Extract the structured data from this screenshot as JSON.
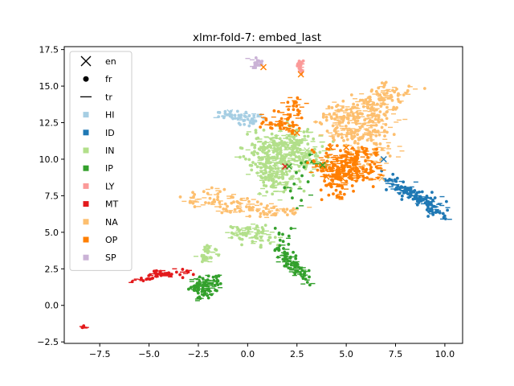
{
  "chart_data": {
    "type": "scatter",
    "title": "xlmr-fold-7: embed_last",
    "xlabel": "",
    "ylabel": "",
    "xlim": [
      -9.3,
      10.9
    ],
    "ylim": [
      -2.6,
      17.7
    ],
    "xticks": [
      -7.5,
      -5.0,
      -2.5,
      0.0,
      2.5,
      5.0,
      7.5,
      10.0
    ],
    "xtick_labels": [
      "−7.5",
      "−5.0",
      "−2.5",
      "0.0",
      "2.5",
      "5.0",
      "7.5",
      "10.0"
    ],
    "yticks": [
      -2.5,
      0.0,
      2.5,
      5.0,
      7.5,
      10.0,
      12.5,
      15.0,
      17.5
    ],
    "ytick_labels": [
      "−2.5",
      "0.0",
      "2.5",
      "5.0",
      "7.5",
      "10.0",
      "12.5",
      "15.0",
      "17.5"
    ],
    "grid": false,
    "legend_position": "upper-left",
    "marker_legend": [
      {
        "label": "en",
        "marker": "x"
      },
      {
        "label": "fr",
        "marker": "dot"
      },
      {
        "label": "tr",
        "marker": "line"
      }
    ],
    "series": [
      {
        "name": "HI",
        "color": "#a6cee3",
        "clusters": [
          {
            "points": [
              [
                -1.5,
                13.2
              ],
              [
                -0.3,
                12.7
              ],
              [
                0.2,
                12.5
              ],
              [
                -0.8,
                13.0
              ],
              [
                0.5,
                12.8
              ]
            ],
            "spread": [
              0.3,
              0.15
            ],
            "n": 60
          }
        ]
      },
      {
        "name": "ID",
        "color": "#1f78b4",
        "clusters": [
          {
            "points": [
              [
                7.0,
                8.8
              ],
              [
                7.8,
                8.0
              ],
              [
                8.6,
                7.5
              ],
              [
                9.3,
                7.2
              ],
              [
                9.5,
                6.5
              ],
              [
                10.0,
                6.2
              ]
            ],
            "spread": [
              0.25,
              0.2
            ],
            "n": 170
          }
        ]
      },
      {
        "name": "IN",
        "color": "#b2df8a",
        "clusters": [
          {
            "points": [
              [
                0.3,
                11.5
              ],
              [
                1.5,
                11.2
              ],
              [
                2.5,
                11.5
              ],
              [
                3.2,
                11.0
              ],
              [
                0.5,
                10.2
              ],
              [
                1.5,
                9.8
              ],
              [
                2.5,
                10.3
              ],
              [
                0.8,
                9.0
              ],
              [
                2.2,
                8.6
              ],
              [
                3.5,
                10.0
              ],
              [
                1.2,
                8.2
              ]
            ],
            "spread": [
              0.45,
              0.45
            ],
            "n": 520
          },
          {
            "points": [
              [
                -0.5,
                5.0
              ],
              [
                0.2,
                5.3
              ],
              [
                0.8,
                5.0
              ],
              [
                -0.2,
                4.6
              ],
              [
                1.0,
                4.5
              ]
            ],
            "spread": [
              0.3,
              0.25
            ],
            "n": 90
          },
          {
            "points": [
              [
                -2.0,
                3.9
              ],
              [
                -2.3,
                3.2
              ],
              [
                -1.8,
                3.5
              ]
            ],
            "spread": [
              0.2,
              0.25
            ],
            "n": 40
          }
        ]
      },
      {
        "name": "IP",
        "color": "#33a02c",
        "clusters": [
          {
            "points": [
              [
                1.8,
                3.4
              ],
              [
                2.2,
                2.9
              ],
              [
                2.6,
                2.4
              ],
              [
                3.0,
                1.8
              ],
              [
                1.6,
                4.0
              ]
            ],
            "spread": [
              0.2,
              0.2
            ],
            "n": 110
          },
          {
            "points": [
              [
                -2.3,
                1.6
              ],
              [
                -2.0,
                1.1
              ],
              [
                -2.2,
                0.6
              ],
              [
                -1.7,
                1.8
              ],
              [
                -2.6,
                1.3
              ]
            ],
            "spread": [
              0.25,
              0.2
            ],
            "n": 120
          },
          {
            "points": [
              [
                3.5,
                9.8
              ],
              [
                3.0,
                10.2
              ],
              [
                2.0,
                7.8
              ],
              [
                2.8,
                6.6
              ],
              [
                1.8,
                4.8
              ]
            ],
            "spread": [
              0.2,
              0.15
            ],
            "n": 30
          }
        ]
      },
      {
        "name": "LY",
        "color": "#fb9a99",
        "clusters": [
          {
            "points": [
              [
                2.6,
                16.6
              ],
              [
                2.7,
                16.0
              ],
              [
                2.7,
                16.3
              ]
            ],
            "spread": [
              0.08,
              0.2
            ],
            "n": 30
          }
        ]
      },
      {
        "name": "MT",
        "color": "#e31a1c",
        "clusters": [
          {
            "points": [
              [
                -5.8,
                1.7
              ],
              [
                -4.8,
                2.0
              ],
              [
                -4.2,
                2.2
              ],
              [
                -3.5,
                2.1
              ],
              [
                -2.8,
                2.4
              ],
              [
                -4.5,
                2.3
              ],
              [
                -5.2,
                1.8
              ]
            ],
            "spread": [
              0.25,
              0.1
            ],
            "n": 70
          },
          {
            "points": [
              [
                -8.3,
                -1.5
              ]
            ],
            "spread": [
              0.08,
              0.06
            ],
            "n": 8
          }
        ]
      },
      {
        "name": "NA",
        "color": "#fdbf6f",
        "clusters": [
          {
            "points": [
              [
                4.0,
                12.6
              ],
              [
                5.0,
                13.0
              ],
              [
                6.0,
                13.5
              ],
              [
                7.0,
                14.5
              ],
              [
                8.0,
                15.0
              ],
              [
                5.5,
                11.8
              ],
              [
                6.5,
                12.0
              ],
              [
                4.5,
                11.5
              ],
              [
                5.8,
                10.8
              ],
              [
                6.8,
                10.0
              ],
              [
                7.5,
                14.0
              ],
              [
                4.5,
                13.5
              ]
            ],
            "spread": [
              0.4,
              0.35
            ],
            "n": 420
          },
          {
            "points": [
              [
                -3.0,
                7.2
              ],
              [
                -2.0,
                7.0
              ],
              [
                -1.5,
                7.8
              ],
              [
                -0.5,
                7.0
              ],
              [
                0.5,
                6.6
              ],
              [
                1.5,
                6.3
              ],
              [
                2.5,
                6.5
              ],
              [
                -1.0,
                6.5
              ]
            ],
            "spread": [
              0.3,
              0.2
            ],
            "n": 150
          }
        ]
      },
      {
        "name": "OP",
        "color": "#ff7f00",
        "clusters": [
          {
            "points": [
              [
                3.5,
                9.5
              ],
              [
                4.0,
                9.2
              ],
              [
                4.5,
                9.0
              ],
              [
                5.0,
                9.8
              ],
              [
                5.5,
                10.2
              ],
              [
                6.0,
                9.5
              ],
              [
                4.5,
                8.3
              ],
              [
                5.5,
                8.8
              ],
              [
                6.5,
                9.0
              ],
              [
                4.5,
                7.5
              ],
              [
                3.8,
                10.5
              ],
              [
                6.2,
                10.8
              ]
            ],
            "spread": [
              0.3,
              0.3
            ],
            "n": 330
          },
          {
            "points": [
              [
                2.5,
                13.0
              ],
              [
                2.5,
                14.3
              ],
              [
                1.8,
                12.5
              ],
              [
                0.8,
                12.6
              ],
              [
                2.3,
                12.0
              ]
            ],
            "spread": [
              0.2,
              0.2
            ],
            "n": 90
          }
        ]
      },
      {
        "name": "SP",
        "color": "#cab2d6",
        "clusters": [
          {
            "points": [
              [
                0.3,
                16.8
              ],
              [
                0.6,
                16.6
              ],
              [
                0.4,
                16.4
              ]
            ],
            "spread": [
              0.12,
              0.1
            ],
            "n": 25
          }
        ]
      }
    ],
    "x_markers": [
      {
        "x": 0.8,
        "y": 16.3,
        "color": "#ff7f00"
      },
      {
        "x": 2.7,
        "y": 15.8,
        "color": "#ff7f00"
      },
      {
        "x": -0.9,
        "y": 13.2,
        "color": "#a6cee3"
      },
      {
        "x": 2.5,
        "y": 11.8,
        "color": "#ff7f00"
      },
      {
        "x": 4.2,
        "y": 10.8,
        "color": "#ff7f00"
      },
      {
        "x": 6.9,
        "y": 10.0,
        "color": "#1f78b4"
      },
      {
        "x": 1.9,
        "y": 9.5,
        "color": "#e31a1c"
      },
      {
        "x": 2.1,
        "y": 9.5,
        "color": "#33a02c"
      },
      {
        "x": 3.8,
        "y": 9.6,
        "color": "#33a02c"
      },
      {
        "x": 5.0,
        "y": 10.8,
        "color": "#ff7f00"
      },
      {
        "x": 3.0,
        "y": 10.6,
        "color": "#b2df8a"
      },
      {
        "x": 4.0,
        "y": 8.8,
        "color": "#ff7f00"
      },
      {
        "x": 5.2,
        "y": 8.9,
        "color": "#ff7f00"
      },
      {
        "x": 6.8,
        "y": 8.7,
        "color": "#fdbf6f"
      },
      {
        "x": 4.8,
        "y": 8.7,
        "color": "#ff7f00"
      }
    ]
  }
}
